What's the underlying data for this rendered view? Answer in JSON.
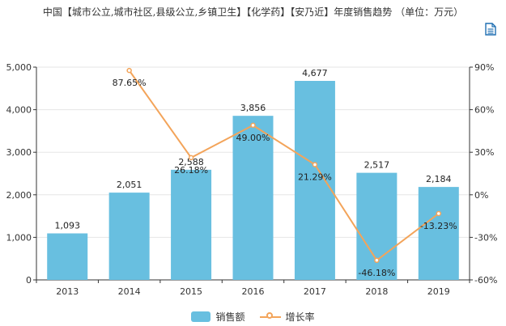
{
  "title": "中国【城市公立,城市社区,县级公立,乡镇卫生】【化学药】【安乃近】年度销售趋势 （单位：万元）",
  "toolbar": {
    "icon": "document-icon"
  },
  "colors": {
    "bar": "#68bfe0",
    "line": "#f3a45a",
    "axis": "#333333",
    "grid": "#e6e6e6"
  },
  "chart_data": {
    "type": "bar",
    "categories": [
      "2013",
      "2014",
      "2015",
      "2016",
      "2017",
      "2018",
      "2019"
    ],
    "series": [
      {
        "name": "销售额",
        "type": "bar",
        "axis": "left",
        "values": [
          1093,
          2051,
          2588,
          3856,
          4677,
          2517,
          2184
        ],
        "labels": [
          "1,093",
          "2,051",
          "2,588",
          "3,856",
          "4,677",
          "2,517",
          "2,184"
        ]
      },
      {
        "name": "增长率",
        "type": "line",
        "axis": "right",
        "values": [
          null,
          87.65,
          26.18,
          49.0,
          21.29,
          -46.18,
          -13.23
        ],
        "labels": [
          "",
          "87.65%",
          "26.18%",
          "49.00%",
          "21.29%",
          "-46.18%",
          "-13.23%"
        ]
      }
    ],
    "y_left": {
      "min": 0,
      "max": 5000,
      "ticks": [
        "0",
        "1,000",
        "2,000",
        "3,000",
        "4,000",
        "5,000"
      ]
    },
    "y_right": {
      "min": -60,
      "max": 90,
      "ticks": [
        "-60%",
        "-30%",
        "0%",
        "30%",
        "60%",
        "90%"
      ]
    },
    "grid": true,
    "legend_position": "bottom-center"
  }
}
